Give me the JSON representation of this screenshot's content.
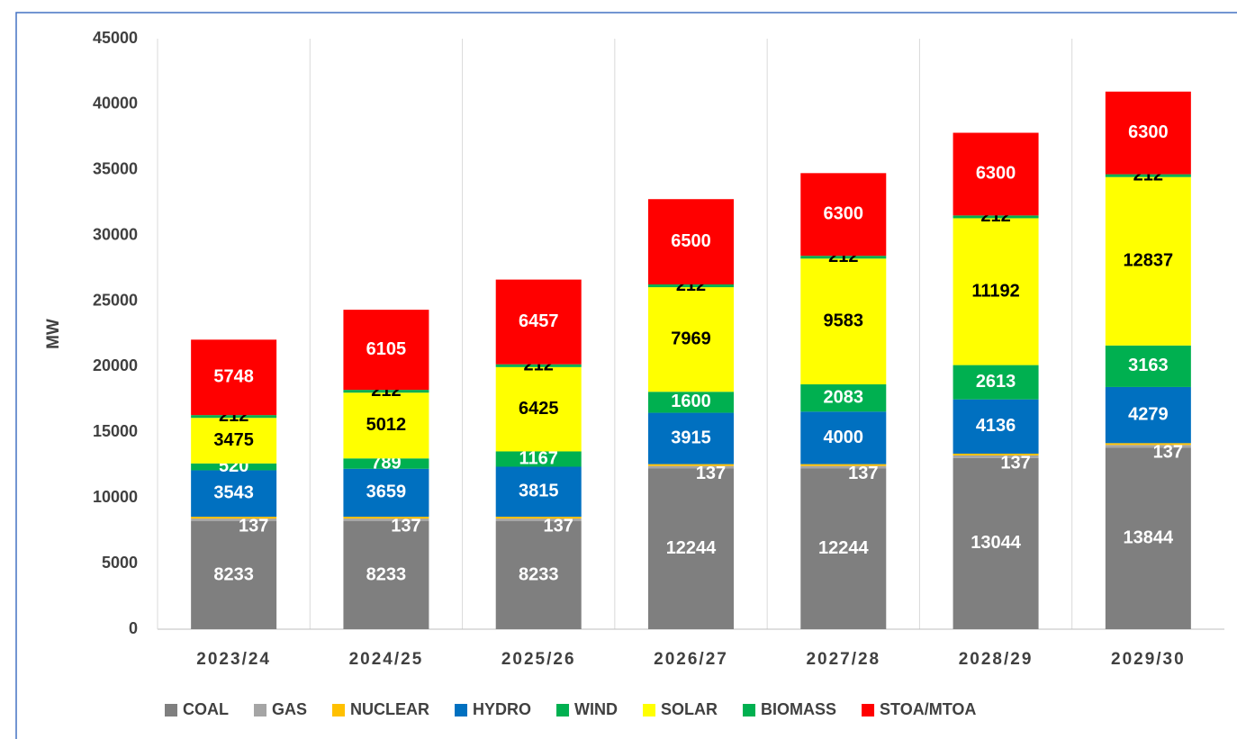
{
  "chart_data": {
    "type": "stacked_bar",
    "y_label": "MW",
    "categories": [
      "2023/24",
      "2024/25",
      "2025/26",
      "2026/27",
      "2027/28",
      "2028/29",
      "2029/30"
    ],
    "series": [
      {
        "name": "COAL",
        "color": "#7f7f7f",
        "label_color": "#ffffff",
        "values": [
          8233,
          8233,
          8233,
          12244,
          12244,
          13044,
          13844
        ]
      },
      {
        "name": "GAS",
        "color": "#a5a5a5",
        "label_color": "#ffffff",
        "values": [
          197,
          197,
          197,
          197,
          197,
          197,
          197
        ]
      },
      {
        "name": "NUCLEAR",
        "color": "#ffc000",
        "label_color": "#ffffff",
        "values": [
          137,
          137,
          137,
          137,
          137,
          137,
          137
        ]
      },
      {
        "name": "HYDRO",
        "color": "#0070c0",
        "label_color": "#ffffff",
        "values": [
          3543,
          3659,
          3815,
          3915,
          4000,
          4136,
          4279
        ]
      },
      {
        "name": "WIND",
        "color": "#00b050",
        "label_color": "#ffffff",
        "values": [
          520,
          789,
          1167,
          1600,
          2083,
          2613,
          3163
        ]
      },
      {
        "name": "SOLAR",
        "color": "#ffff00",
        "label_color": "#000000",
        "values": [
          3475,
          5012,
          6425,
          7969,
          9583,
          11192,
          12837
        ]
      },
      {
        "name": "BIOMASS",
        "color": "#00b050",
        "label_color": "#000000",
        "values": [
          212,
          212,
          212,
          212,
          212,
          212,
          212
        ]
      },
      {
        "name": "STOA/MTOA",
        "color": "#ff0000",
        "label_color": "#ffffff",
        "values": [
          5748,
          6105,
          6457,
          6500,
          6300,
          6300,
          6300
        ]
      }
    ],
    "ylim": [
      0,
      45000
    ],
    "yticks": [
      0,
      5000,
      10000,
      15000,
      20000,
      25000,
      30000,
      35000,
      40000,
      45000
    ],
    "legend": "bottom"
  }
}
